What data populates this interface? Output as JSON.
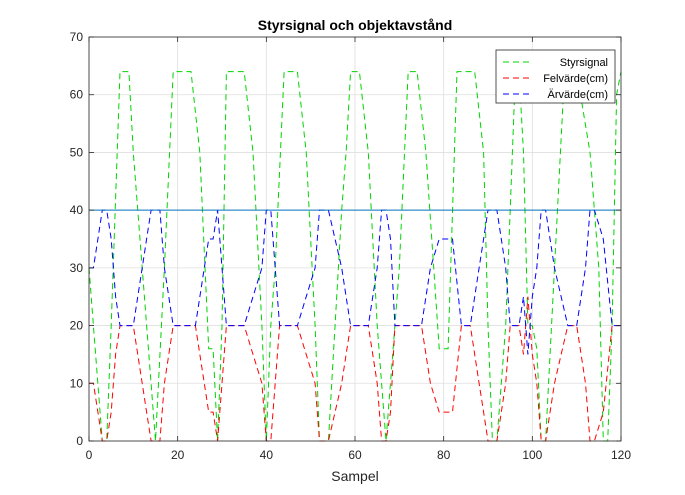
{
  "chart_data": {
    "type": "line",
    "title": "Styrsignal och objektavstånd",
    "xlabel": "Sampel",
    "ylabel": "",
    "xlim": [
      0,
      120
    ],
    "ylim": [
      0,
      70
    ],
    "xticks": [
      0,
      20,
      40,
      60,
      80,
      100,
      120
    ],
    "yticks": [
      0,
      10,
      20,
      30,
      40,
      50,
      60,
      70
    ],
    "grid": true,
    "legend_position": "top-right",
    "series": [
      {
        "name": "Styrsignal",
        "color": "#00d400",
        "dashed": true,
        "x": [
          0,
          1,
          3,
          4,
          5,
          7,
          9,
          10,
          12,
          15,
          17,
          19,
          23,
          25,
          27,
          28,
          29,
          30,
          31,
          35,
          37,
          39,
          40,
          41,
          42,
          44,
          47,
          49,
          51,
          52,
          54,
          57,
          58,
          59,
          61,
          63,
          65,
          67,
          69,
          70,
          72,
          74,
          76,
          79,
          81,
          83,
          87,
          89,
          90,
          91,
          92,
          94,
          95,
          96,
          97,
          98,
          99,
          100,
          101,
          102,
          103,
          105,
          107,
          109,
          110,
          113,
          115,
          116,
          117,
          118,
          119,
          120
        ],
        "values": [
          30,
          20,
          0,
          0,
          20,
          64,
          64,
          50,
          30,
          0,
          30,
          64,
          64,
          50,
          16,
          16,
          0,
          20,
          64,
          64,
          50,
          20,
          0,
          20,
          30,
          64,
          64,
          50,
          20,
          0,
          0,
          40,
          50,
          64,
          64,
          50,
          20,
          0,
          20,
          30,
          64,
          64,
          50,
          16,
          16,
          64,
          64,
          50,
          20,
          0,
          0,
          20,
          40,
          60,
          64,
          50,
          20,
          20,
          16,
          0,
          0,
          30,
          60,
          64,
          64,
          50,
          30,
          0,
          0,
          20,
          60,
          64
        ]
      },
      {
        "name": "Felvärde(cm)",
        "color": "#ff0000",
        "dashed": true,
        "x": [
          0,
          1,
          2,
          3,
          4,
          5,
          6,
          7,
          10,
          12,
          13,
          14,
          15,
          16,
          17,
          19,
          24,
          26,
          27,
          28,
          29,
          30,
          31,
          35,
          37,
          39,
          40,
          41,
          43,
          47,
          49,
          51,
          52,
          54,
          57,
          58,
          59,
          63,
          65,
          66,
          67,
          68,
          69,
          75,
          77,
          79,
          82,
          84,
          86,
          88,
          89,
          90,
          91,
          92,
          93,
          94,
          95,
          97,
          98,
          99,
          100,
          101,
          102,
          103,
          105,
          108,
          110,
          111,
          112,
          113,
          114,
          116,
          118,
          120
        ],
        "values": [
          10,
          10,
          5,
          0,
          0,
          5,
          15,
          20,
          20,
          10,
          5,
          0,
          0,
          0,
          10,
          20,
          20,
          10,
          5,
          5,
          0,
          10,
          20,
          20,
          15,
          10,
          0,
          0,
          20,
          20,
          15,
          10,
          0,
          0,
          10,
          15,
          20,
          20,
          10,
          0,
          0,
          5,
          20,
          20,
          10,
          5,
          5,
          20,
          20,
          10,
          5,
          0,
          0,
          0,
          5,
          10,
          20,
          20,
          15,
          25,
          15,
          10,
          0,
          0,
          10,
          20,
          20,
          15,
          10,
          0,
          0,
          5,
          20,
          20
        ]
      },
      {
        "name": "Ärvärde(cm)",
        "color": "#0000ff",
        "dashed": true,
        "x": [
          0,
          1,
          2,
          3,
          4,
          5,
          6,
          7,
          10,
          12,
          13,
          14,
          15,
          16,
          17,
          19,
          24,
          26,
          27,
          28,
          29,
          30,
          31,
          35,
          37,
          39,
          40,
          41,
          43,
          47,
          49,
          51,
          52,
          54,
          57,
          58,
          59,
          63,
          65,
          66,
          67,
          68,
          69,
          75,
          77,
          79,
          82,
          84,
          86,
          88,
          89,
          90,
          91,
          92,
          93,
          94,
          95,
          97,
          98,
          99,
          100,
          101,
          102,
          103,
          105,
          108,
          110,
          111,
          112,
          113,
          114,
          116,
          118,
          120
        ],
        "values": [
          30,
          30,
          35,
          40,
          40,
          35,
          25,
          20,
          20,
          30,
          35,
          40,
          40,
          40,
          30,
          20,
          20,
          30,
          35,
          35,
          40,
          30,
          20,
          20,
          25,
          30,
          40,
          40,
          20,
          20,
          25,
          30,
          40,
          40,
          30,
          25,
          20,
          20,
          30,
          40,
          40,
          35,
          20,
          20,
          30,
          35,
          35,
          20,
          20,
          30,
          35,
          40,
          40,
          40,
          35,
          30,
          20,
          20,
          25,
          15,
          25,
          30,
          40,
          40,
          30,
          20,
          20,
          25,
          30,
          40,
          40,
          35,
          20,
          20
        ]
      },
      {
        "name": "",
        "color": "#0072bd",
        "dashed": false,
        "x": [
          0,
          120
        ],
        "values": [
          40,
          40
        ]
      }
    ]
  }
}
